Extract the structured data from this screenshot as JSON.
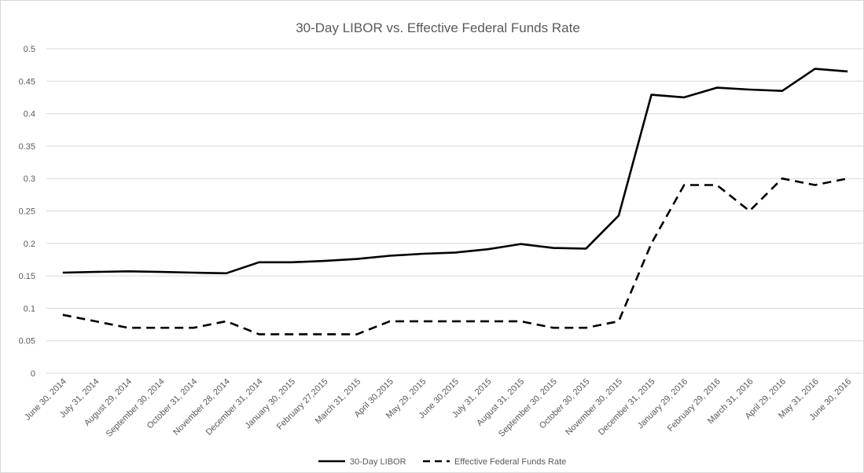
{
  "chart_data": {
    "type": "line",
    "title": "30-Day LIBOR vs. Effective Federal Funds Rate",
    "xlabel": "",
    "ylabel": "",
    "ylim": [
      0,
      0.5
    ],
    "yticks": [
      "0",
      "0.05",
      "0.1",
      "0.15",
      "0.2",
      "0.25",
      "0.3",
      "0.35",
      "0.4",
      "0.45",
      "0.5"
    ],
    "grid": "horizontal",
    "legend_position": "bottom",
    "categories": [
      "June 30, 2014",
      "July 31, 2014",
      "August 29, 2014",
      "September 30, 2014",
      "October 31, 2014",
      "November 28, 2014",
      "December 31, 2014",
      "January 30, 2015",
      "February 27,2015",
      "March 31, 2015",
      "April 30,2015",
      "May 29, 2015",
      "June 30,2015",
      "July 31, 2015",
      "August 31, 2015",
      "September 30, 2015",
      "October 30, 2015",
      "November 30, 2015",
      "December 31, 2015",
      "January 29, 2016",
      "February 29, 2016",
      "March 31, 2016",
      "April 29, 2016",
      "May 31, 2016",
      "June 30, 2016"
    ],
    "series": [
      {
        "name": "30-Day LIBOR",
        "style": "solid",
        "color": "#000000",
        "values": [
          0.155,
          0.156,
          0.157,
          0.156,
          0.155,
          0.154,
          0.171,
          0.171,
          0.173,
          0.176,
          0.181,
          0.184,
          0.186,
          0.191,
          0.199,
          0.193,
          0.192,
          0.243,
          0.429,
          0.425,
          0.44,
          0.437,
          0.435,
          0.469,
          0.465
        ]
      },
      {
        "name": "Effective Federal Funds Rate",
        "style": "dashed",
        "color": "#000000",
        "values": [
          0.09,
          0.08,
          0.07,
          0.07,
          0.07,
          0.08,
          0.06,
          0.06,
          0.06,
          0.06,
          0.08,
          0.08,
          0.08,
          0.08,
          0.08,
          0.07,
          0.07,
          0.08,
          0.2,
          0.29,
          0.29,
          0.25,
          0.3,
          0.29,
          0.3
        ]
      }
    ]
  }
}
